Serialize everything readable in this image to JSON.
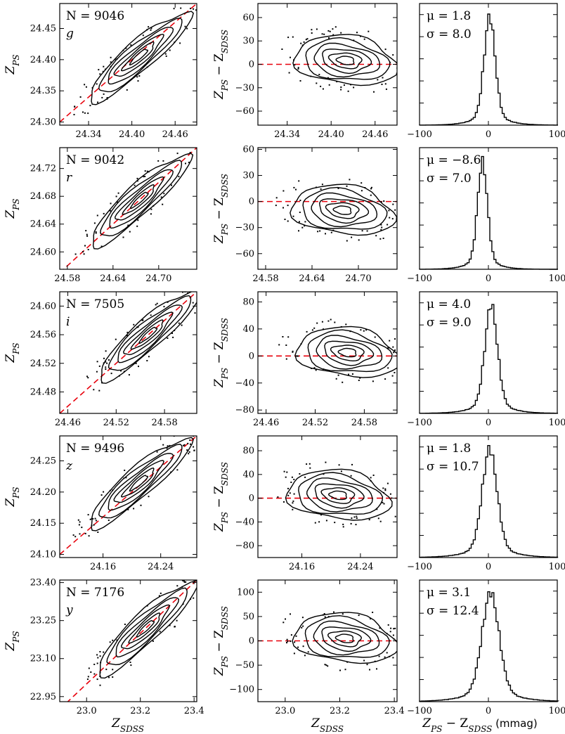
{
  "figure": {
    "columns": [
      "scatter",
      "residual",
      "histogram"
    ],
    "x_label_sdss": "Z_SDSS",
    "y_label_ps": "Z_PS",
    "y_label_residual": "Z_PS − Z_SDSS",
    "hist_x_label": "Z_PS − Z_SDSS (mmag)"
  },
  "chart_data": [
    {
      "type": "scatter",
      "band": "g",
      "n_label": "N = 9046",
      "band_label": "g",
      "xlim": [
        24.3,
        24.49
      ],
      "ylim": [
        24.295,
        24.49
      ],
      "xticks": [
        "24.34",
        "24.40",
        "24.46"
      ],
      "yticks": [
        "24.30",
        "24.35",
        "24.40",
        "24.45"
      ],
      "xtick_values": [
        24.34,
        24.4,
        24.46
      ],
      "ytick_values": [
        24.3,
        24.35,
        24.4,
        24.45
      ],
      "center": [
        24.41,
        24.405
      ],
      "slope": 1.0,
      "residual": {
        "ylim": [
          -78,
          78
        ],
        "yticks": [
          "−60",
          "−30",
          "0",
          "30",
          "60"
        ],
        "ytick_values": [
          -60,
          -30,
          0,
          30,
          60
        ],
        "center": [
          24.42,
          5
        ]
      },
      "hist": {
        "mu_label": "μ = 1.8",
        "sigma_label": "σ = 8.0",
        "mu": 1.8,
        "sigma": 8.0,
        "xlim": [
          -100,
          100
        ],
        "xticks": [
          "−100",
          "0",
          "100"
        ],
        "xtick_values": [
          -100,
          0,
          100
        ]
      }
    },
    {
      "type": "scatter",
      "band": "r",
      "n_label": "N = 9042",
      "band_label": "r",
      "xlim": [
        24.57,
        24.75
      ],
      "ylim": [
        24.575,
        24.75
      ],
      "xticks": [
        "24.58",
        "24.64",
        "24.70"
      ],
      "yticks": [
        "24.60",
        "24.64",
        "24.68",
        "24.72"
      ],
      "xtick_values": [
        24.58,
        24.64,
        24.7
      ],
      "ytick_values": [
        24.6,
        24.64,
        24.68,
        24.72
      ],
      "center": [
        24.675,
        24.675
      ],
      "slope": 1.0,
      "residual": {
        "ylim": [
          -78,
          62
        ],
        "yticks": [
          "−60",
          "−30",
          "0",
          "30",
          "60"
        ],
        "ytick_values": [
          -60,
          -30,
          0,
          30,
          60
        ],
        "center": [
          24.68,
          -10
        ]
      },
      "hist": {
        "mu_label": "μ = −8.6",
        "sigma_label": "σ = 7.0",
        "mu": -8.6,
        "sigma": 7.0,
        "xlim": [
          -100,
          100
        ],
        "xticks": [
          "−100",
          "0",
          "100"
        ],
        "xtick_values": [
          -100,
          0,
          100
        ]
      }
    },
    {
      "type": "scatter",
      "band": "i",
      "n_label": "N = 7505",
      "band_label": "i",
      "xlim": [
        24.45,
        24.62
      ],
      "ylim": [
        24.45,
        24.62
      ],
      "xticks": [
        "24.46",
        "24.52",
        "24.58"
      ],
      "yticks": [
        "24.48",
        "24.52",
        "24.56",
        "24.60"
      ],
      "xtick_values": [
        24.46,
        24.52,
        24.58
      ],
      "ytick_values": [
        24.48,
        24.52,
        24.56,
        24.6
      ],
      "center": [
        24.56,
        24.56
      ],
      "slope": 1.0,
      "residual": {
        "ylim": [
          -85,
          95
        ],
        "yticks": [
          "−80",
          "−40",
          "0",
          "40",
          "80"
        ],
        "ytick_values": [
          -80,
          -40,
          0,
          40,
          80
        ],
        "center": [
          24.56,
          5
        ]
      },
      "hist": {
        "mu_label": "μ = 4.0",
        "sigma_label": "σ = 9.0",
        "mu": 4.0,
        "sigma": 9.0,
        "xlim": [
          -100,
          100
        ],
        "xticks": [
          "−100",
          "0",
          "100"
        ],
        "xtick_values": [
          -100,
          0,
          100
        ]
      }
    },
    {
      "type": "scatter",
      "band": "z",
      "n_label": "N = 9496",
      "band_label": "z",
      "xlim": [
        24.1,
        24.29
      ],
      "ylim": [
        24.095,
        24.29
      ],
      "xticks": [
        "24.16",
        "24.24"
      ],
      "yticks": [
        "24.10",
        "24.15",
        "24.20",
        "24.25"
      ],
      "xtick_values": [
        24.16,
        24.24
      ],
      "ytick_values": [
        24.1,
        24.15,
        24.2,
        24.25
      ],
      "center": [
        24.21,
        24.215
      ],
      "slope": 1.0,
      "residual": {
        "ylim": [
          -100,
          105
        ],
        "yticks": [
          "−80",
          "−40",
          "0",
          "40",
          "80"
        ],
        "ytick_values": [
          -80,
          -40,
          0,
          40,
          80
        ],
        "center": [
          24.21,
          5
        ]
      },
      "hist": {
        "mu_label": "μ = 1.8",
        "sigma_label": "σ = 10.7",
        "mu": 1.8,
        "sigma": 10.7,
        "xlim": [
          -100,
          100
        ],
        "xticks": [
          "−100",
          "0",
          "100"
        ],
        "xtick_values": [
          -100,
          0,
          100
        ]
      }
    },
    {
      "type": "scatter",
      "band": "y",
      "n_label": "N = 7176",
      "band_label": "y",
      "xlim": [
        22.9,
        23.41
      ],
      "ylim": [
        22.93,
        23.41
      ],
      "xticks": [
        "23.0",
        "23.2",
        "23.4"
      ],
      "yticks": [
        "22.95",
        "23.10",
        "23.25",
        "23.40"
      ],
      "xtick_values": [
        23.0,
        23.2,
        23.4
      ],
      "ytick_values": [
        22.95,
        23.1,
        23.25,
        23.4
      ],
      "center": [
        23.22,
        23.22
      ],
      "slope": 1.0,
      "residual": {
        "ylim": [
          -125,
          125
        ],
        "yticks": [
          "−100",
          "−50",
          "0",
          "50",
          "100"
        ],
        "ytick_values": [
          -100,
          -50,
          0,
          50,
          100
        ],
        "center": [
          23.22,
          5
        ]
      },
      "hist": {
        "mu_label": "μ = 3.1",
        "sigma_label": "σ = 12.4",
        "mu": 3.1,
        "sigma": 12.4,
        "xlim": [
          -100,
          100
        ],
        "xticks": [
          "−100",
          "0",
          "100"
        ],
        "xtick_values": [
          -100,
          0,
          100
        ]
      }
    }
  ]
}
